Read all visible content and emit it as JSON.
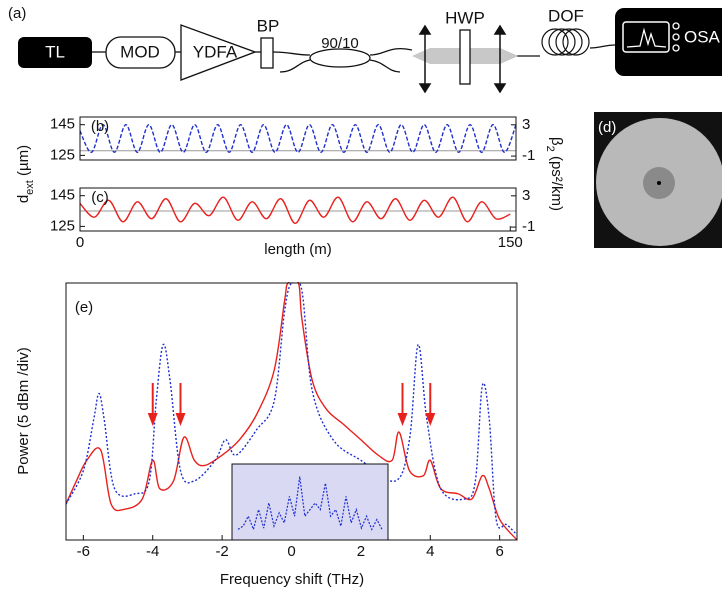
{
  "diagram": {
    "panel": "(a)",
    "nodes": [
      "TL",
      "MOD",
      "YDFA",
      "BP",
      "90/10",
      "HWP",
      "DOF",
      "OSA"
    ]
  },
  "image_panel": "(d)",
  "chart_data": [
    {
      "type": "line",
      "panel": "(b)",
      "y_label": {
        "main": "d",
        "sub": "ext",
        "unit": " (µm)"
      },
      "y2_label": {
        "main": "β",
        "sub": "2",
        "unit": " (ps²/km)"
      },
      "xlim": [
        0,
        152
      ],
      "ylim": [
        122,
        150
      ],
      "yticks": [
        125,
        145
      ],
      "y2lim": [
        -1.5,
        4
      ],
      "y2ticks": [
        -1,
        3
      ],
      "reference_line": 128,
      "x": [
        0,
        4,
        8,
        12,
        16,
        20,
        24,
        28,
        32,
        36,
        40,
        44,
        48,
        52,
        56,
        60,
        64,
        68,
        72,
        76,
        80,
        84,
        88,
        92,
        96,
        100,
        104,
        108,
        112,
        116,
        120,
        124,
        128,
        132,
        136,
        140,
        144,
        148,
        152
      ],
      "series": [
        {
          "color": "#1f2fd0",
          "dash": "dashed",
          "values": [
            141,
            127,
            145,
            127,
            145,
            127,
            145,
            127,
            145,
            127,
            145,
            127,
            145,
            127,
            145,
            127,
            145,
            127,
            145,
            127,
            145,
            127,
            145,
            127,
            145,
            127,
            145,
            127,
            145,
            127,
            145,
            127,
            145,
            127,
            145,
            127,
            145,
            127,
            145
          ]
        }
      ]
    },
    {
      "type": "line",
      "panel": "(c)",
      "x_label": "length (m)",
      "xlim": [
        0,
        152
      ],
      "xticks": [
        0,
        150
      ],
      "ylim": [
        122,
        150
      ],
      "yticks": [
        125,
        145
      ],
      "y2lim": [
        -1.5,
        4
      ],
      "y2ticks": [
        -1,
        3
      ],
      "reference_line": 135,
      "x": [
        0,
        5,
        10,
        15,
        20,
        25,
        30,
        35,
        40,
        45,
        50,
        55,
        60,
        65,
        70,
        75,
        80,
        85,
        90,
        95,
        100,
        105,
        110,
        115,
        120,
        125,
        130,
        135,
        140,
        145,
        150
      ],
      "series": [
        {
          "color": "#e8211d",
          "dash": "solid",
          "values": [
            140,
            131,
            142,
            128,
            141,
            130,
            143,
            128,
            140,
            132,
            144,
            129,
            141,
            130,
            143,
            127,
            142,
            131,
            144,
            128,
            141,
            130,
            143,
            129,
            142,
            131,
            144,
            128,
            141,
            130,
            133
          ]
        }
      ]
    },
    {
      "type": "line",
      "panel": "(e)",
      "x_label": "Frequency shift (THz)",
      "y_label": "Power (5 dBm /div)",
      "xlim": [
        -6.5,
        6.5
      ],
      "xticks": [
        -6,
        -4,
        -2,
        0,
        2,
        4,
        6
      ],
      "ylim": [
        0,
        10
      ],
      "arrows": [
        -4,
        -3.2,
        3.2,
        4
      ],
      "series": [
        {
          "color": "#e8211d",
          "dash": "solid",
          "x": [
            -6.5,
            -6.2,
            -5.9,
            -5.5,
            -5.2,
            -4.8,
            -4.3,
            -4.0,
            -3.8,
            -3.4,
            -3.1,
            -2.8,
            -2.5,
            -2,
            -1.5,
            -1,
            -0.5,
            -0.2,
            -0.1,
            0.2,
            0.3,
            0.6,
            1,
            1.5,
            2,
            2.5,
            2.9,
            3.1,
            3.4,
            3.8,
            4.0,
            4.3,
            4.8,
            5.2,
            5.5,
            5.7,
            6.0,
            6.5
          ],
          "values": [
            1.4,
            2.3,
            3.1,
            3.5,
            1.4,
            1.2,
            1.6,
            3.1,
            2.0,
            2.3,
            4.0,
            3.1,
            2.9,
            3.3,
            3.9,
            4.9,
            6.6,
            9.3,
            10,
            10,
            8.6,
            6.2,
            5.1,
            4.5,
            3.9,
            3.3,
            3.1,
            4.2,
            2.7,
            2.5,
            3.1,
            2.0,
            1.8,
            1.6,
            2.5,
            2.0,
            0.8,
            0
          ]
        },
        {
          "color": "#1f2fd0",
          "dash": "dotted",
          "x": [
            -6.5,
            -6.0,
            -5.7,
            -5.55,
            -5.4,
            -5.1,
            -4.5,
            -4.1,
            -3.9,
            -3.7,
            -3.5,
            -3.2,
            -2.8,
            -2.2,
            -1.9,
            -1.6,
            -1,
            -0.5,
            -0.2,
            0,
            0.3,
            0.6,
            1.2,
            2,
            3,
            3.4,
            3.65,
            3.9,
            4.3,
            5,
            5.3,
            5.5,
            5.7,
            5.9,
            6.2,
            6.5
          ],
          "values": [
            1.4,
            2.7,
            4.7,
            5.7,
            4.7,
            2.0,
            1.8,
            2.3,
            5.4,
            7.6,
            6.2,
            2.7,
            2.3,
            3.1,
            3.9,
            3.3,
            4.3,
            5.4,
            8.9,
            10,
            9.7,
            5.8,
            3.9,
            3.1,
            2.3,
            3.9,
            7.6,
            4.7,
            2.0,
            1.6,
            2.3,
            6.0,
            4.7,
            0.8,
            0.6,
            0.2
          ]
        }
      ],
      "inset": {
        "color": "#1f2fd0",
        "ylim": [
          0,
          10
        ],
        "values": [
          1,
          1.5,
          3,
          1,
          4,
          1.2,
          5,
          1.5,
          3.5,
          2,
          6,
          3,
          9,
          3,
          4,
          5,
          4,
          8,
          3,
          4,
          1.5,
          6,
          2,
          4,
          1.2,
          3,
          1,
          2.5,
          1
        ]
      }
    }
  ]
}
